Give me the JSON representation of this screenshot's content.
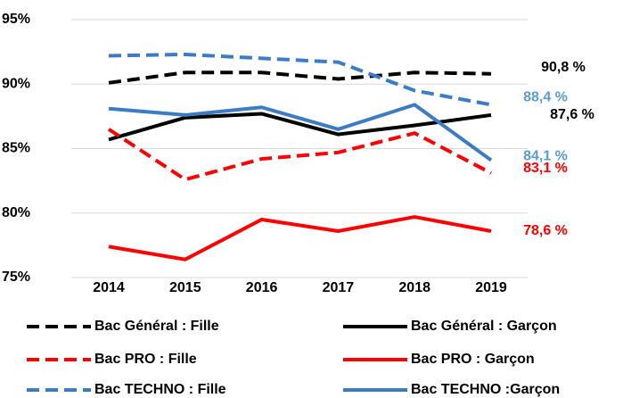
{
  "chart_data": {
    "type": "line",
    "categories": [
      "2014",
      "2015",
      "2016",
      "2017",
      "2018",
      "2019"
    ],
    "ylim": [
      75,
      95
    ],
    "yticks": [
      {
        "value": 75,
        "label": "75%"
      },
      {
        "value": 80,
        "label": "80%"
      },
      {
        "value": 85,
        "label": "85%"
      },
      {
        "value": 90,
        "label": "90%"
      },
      {
        "value": 95,
        "label": "95%"
      }
    ],
    "grid": true,
    "legend": "bottom",
    "series": [
      {
        "name": "Bac Général : Fille",
        "color": "#000000",
        "dash": true,
        "label_color": "#000000",
        "values": [
          90.1,
          90.9,
          90.9,
          90.4,
          90.9,
          90.8
        ],
        "value_labels": [
          null,
          null,
          null,
          null,
          null,
          "90,8 %"
        ]
      },
      {
        "name": "Bac Général : Garçon",
        "color": "#000000",
        "dash": false,
        "label_color": "#000000",
        "values": [
          85.7,
          87.4,
          87.7,
          86.1,
          86.8,
          87.6
        ],
        "value_labels": [
          null,
          null,
          null,
          null,
          null,
          "87,6 %"
        ]
      },
      {
        "name": "Bac PRO : Fille",
        "color": "#ff0000",
        "dash": true,
        "label_color": "#ff0000",
        "values": [
          86.5,
          82.6,
          84.2,
          84.7,
          86.2,
          83.1
        ],
        "value_labels": [
          null,
          null,
          null,
          null,
          null,
          "83,1 %"
        ]
      },
      {
        "name": "Bac PRO : Garçon",
        "color": "#ff0000",
        "dash": false,
        "label_color": "#ff0000",
        "values": [
          77.4,
          76.4,
          79.5,
          78.6,
          79.7,
          78.6
        ],
        "value_labels": [
          null,
          null,
          null,
          null,
          null,
          "78,6 %"
        ]
      },
      {
        "name": "Bac TECHNO : Fille",
        "color": "#3b7cc4",
        "dash": true,
        "label_color": "#5b9bd5",
        "values": [
          92.2,
          92.3,
          92.0,
          91.7,
          89.5,
          88.4
        ],
        "value_labels": [
          null,
          null,
          null,
          null,
          null,
          "88,4 %"
        ]
      },
      {
        "name": "Bac TECHNO :Garçon",
        "color": "#3b7cc4",
        "dash": false,
        "label_color": "#5b9bd5",
        "values": [
          88.1,
          87.6,
          88.2,
          86.5,
          88.4,
          84.1
        ],
        "value_labels": [
          null,
          null,
          null,
          null,
          null,
          "84,1 %"
        ]
      }
    ]
  }
}
